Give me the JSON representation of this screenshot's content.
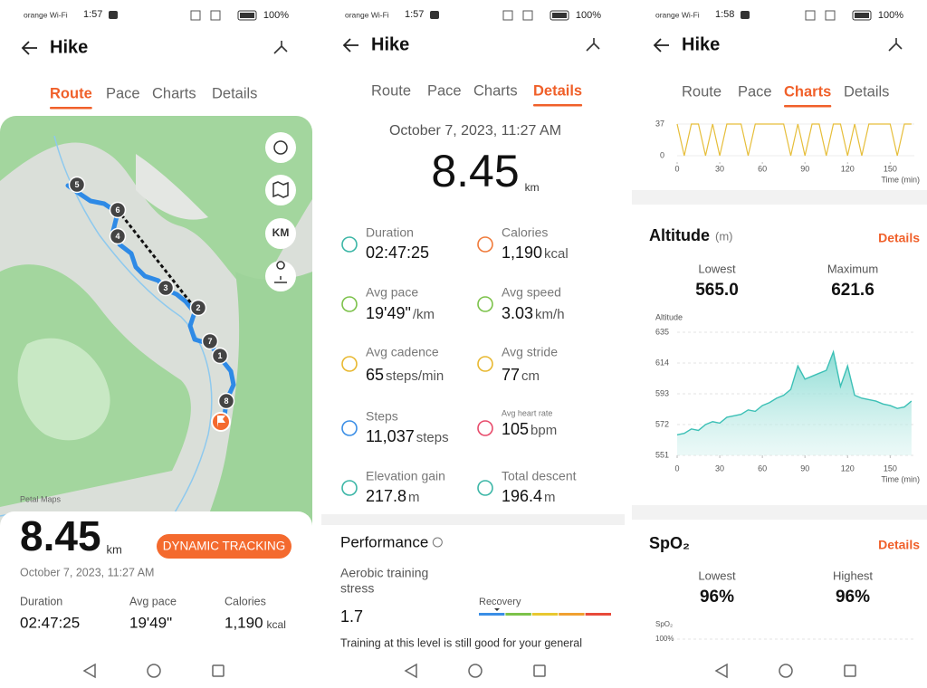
{
  "screens": [
    {
      "status": {
        "carrier": "orange Wi-Fi",
        "time": "1:57",
        "battery": "100%"
      },
      "title": "Hike",
      "tabs": [
        "Route",
        "Pace",
        "Charts",
        "Details"
      ],
      "active_tab": 0,
      "map": {
        "attribution": "Petal Maps",
        "button": "KM",
        "markers": [
          "5",
          "6",
          "4",
          "3",
          "2",
          "7",
          "1",
          "8"
        ]
      },
      "distance": "8.45",
      "distance_unit": "km",
      "badge": "DYNAMIC TRACKING",
      "date": "October 7, 2023, 11:27 AM",
      "stats": [
        {
          "label": "Duration",
          "value": "02:47:25"
        },
        {
          "label": "Avg pace",
          "value": "19'49\""
        },
        {
          "label": "Calories",
          "value": "1,190",
          "unit": "kcal"
        }
      ]
    },
    {
      "status": {
        "carrier": "orange Wi-Fi",
        "time": "1:57",
        "battery": "100%"
      },
      "title": "Hike",
      "tabs": [
        "Route",
        "Pace",
        "Charts",
        "Details"
      ],
      "active_tab": 3,
      "date": "October 7, 2023, 11:27 AM",
      "distance": "8.45",
      "distance_unit": "km",
      "metrics": [
        {
          "label": "Duration",
          "value": "02:47:25"
        },
        {
          "label": "Calories",
          "value": "1,190",
          "unit": "kcal"
        },
        {
          "label": "Avg pace",
          "value": "19'49\"",
          "unit": "/km"
        },
        {
          "label": "Avg speed",
          "value": "3.03",
          "unit": "km/h"
        },
        {
          "label": "Avg cadence",
          "value": "65",
          "unit": "steps/min"
        },
        {
          "label": "Avg stride",
          "value": "77",
          "unit": "cm"
        },
        {
          "label": "Steps",
          "value": "11,037",
          "unit": "steps"
        },
        {
          "label": "Avg heart rate",
          "value": "105",
          "unit": "bpm"
        },
        {
          "label": "Elevation gain",
          "value": "217.8",
          "unit": "m"
        },
        {
          "label": "Total descent",
          "value": "196.4",
          "unit": "m"
        }
      ],
      "performance": {
        "title": "Performance",
        "metric_lines": [
          "Aerobic training",
          "stress"
        ],
        "value": "1.7",
        "scale_label": "Recovery",
        "note": "Training at this level is still good for your general"
      }
    },
    {
      "status": {
        "carrier": "orange Wi-Fi",
        "time": "1:58",
        "battery": "100%"
      },
      "title": "Hike",
      "tabs": [
        "Route",
        "Pace",
        "Charts",
        "Details"
      ],
      "active_tab": 2,
      "timeline": {
        "type": "line",
        "x_label": "Time (min)",
        "xlim": [
          0,
          167
        ],
        "ylim": [
          0,
          37
        ],
        "xticks": [
          0,
          30,
          60,
          90,
          120,
          150
        ],
        "yticks": [
          0,
          37
        ],
        "color": "#e6be3a",
        "x": [
          0,
          5,
          10,
          15,
          20,
          25,
          30,
          35,
          40,
          45,
          50,
          55,
          60,
          65,
          70,
          75,
          80,
          85,
          90,
          95,
          100,
          105,
          110,
          115,
          120,
          125,
          130,
          135,
          140,
          145,
          150,
          155,
          160,
          165
        ],
        "values": [
          37,
          0,
          37,
          37,
          0,
          37,
          0,
          37,
          37,
          37,
          0,
          37,
          37,
          37,
          37,
          37,
          0,
          37,
          0,
          37,
          37,
          0,
          37,
          37,
          0,
          37,
          0,
          37,
          37,
          37,
          37,
          0,
          37,
          37
        ]
      },
      "altitude": {
        "title": "Altitude",
        "unit": "(m)",
        "link": "Details",
        "stats": [
          {
            "label": "Lowest",
            "value": "565.0"
          },
          {
            "label": "Maximum",
            "value": "621.6"
          }
        ],
        "chart": {
          "type": "line",
          "y_label": "Altitude",
          "x_label": "Time (min)",
          "xlim": [
            0,
            167
          ],
          "ylim": [
            551,
            635
          ],
          "xticks": [
            0,
            30,
            60,
            90,
            120,
            150
          ],
          "yticks": [
            551,
            572,
            593,
            614,
            635
          ],
          "color": "#3cc0b6",
          "x": [
            0,
            5,
            10,
            15,
            20,
            25,
            30,
            35,
            40,
            45,
            50,
            55,
            60,
            65,
            70,
            75,
            80,
            85,
            90,
            95,
            100,
            105,
            110,
            115,
            120,
            125,
            130,
            135,
            140,
            145,
            150,
            155,
            160,
            165
          ],
          "values": [
            565,
            566,
            569,
            568,
            572,
            574,
            573,
            577,
            578,
            579,
            582,
            581,
            585,
            587,
            590,
            592,
            596,
            612,
            603,
            605,
            607,
            609,
            621.6,
            598,
            612,
            592,
            590,
            589,
            588,
            586,
            585,
            583,
            584,
            588
          ]
        }
      },
      "spo2": {
        "title": "SpO₂",
        "link": "Details",
        "stats": [
          {
            "label": "Lowest",
            "value": "96%"
          },
          {
            "label": "Highest",
            "value": "96%"
          }
        ],
        "chart": {
          "y_label": "SpO₂",
          "yticks": [
            {
              "value": 100,
              "label": "100%"
            }
          ]
        }
      }
    }
  ]
}
